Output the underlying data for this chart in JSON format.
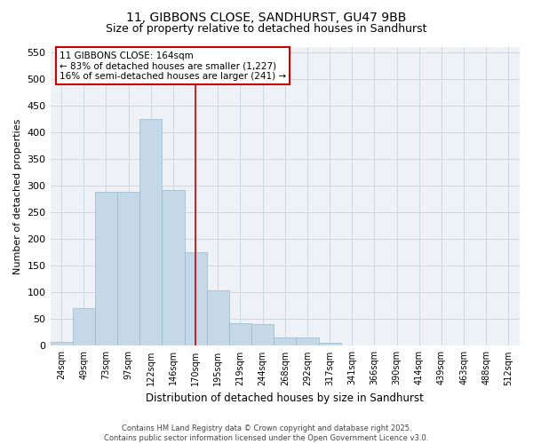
{
  "title": "11, GIBBONS CLOSE, SANDHURST, GU47 9BB",
  "subtitle": "Size of property relative to detached houses in Sandhurst",
  "xlabel": "Distribution of detached houses by size in Sandhurst",
  "ylabel": "Number of detached properties",
  "footer1": "Contains HM Land Registry data © Crown copyright and database right 2025.",
  "footer2": "Contains public sector information licensed under the Open Government Licence v3.0.",
  "categories": [
    "24sqm",
    "49sqm",
    "73sqm",
    "97sqm",
    "122sqm",
    "146sqm",
    "170sqm",
    "195sqm",
    "219sqm",
    "244sqm",
    "268sqm",
    "292sqm",
    "317sqm",
    "341sqm",
    "366sqm",
    "390sqm",
    "414sqm",
    "439sqm",
    "463sqm",
    "488sqm",
    "512sqm"
  ],
  "values": [
    7,
    70,
    288,
    288,
    425,
    292,
    176,
    104,
    42,
    40,
    16,
    16,
    6,
    1,
    0,
    1,
    0,
    0,
    0,
    0,
    0
  ],
  "bar_color": "#c5d8e8",
  "bar_edge_color": "#9ab8cc",
  "bar_width": 1.0,
  "ylim": [
    0,
    560
  ],
  "yticks": [
    0,
    50,
    100,
    150,
    200,
    250,
    300,
    350,
    400,
    450,
    500,
    550
  ],
  "property_label": "11 GIBBONS CLOSE: 164sqm",
  "annotation_line1": "← 83% of detached houses are smaller (1,227)",
  "annotation_line2": "16% of semi-detached houses are larger (241) →",
  "vline_x_index": 6,
  "bg_color": "#eef2f7",
  "grid_color": "#c0cdd8",
  "title_fontsize": 10,
  "subtitle_fontsize": 9,
  "tick_fontsize": 7,
  "ylabel_fontsize": 8,
  "xlabel_fontsize": 8.5,
  "footer_fontsize": 6,
  "annot_fontsize": 7.5
}
